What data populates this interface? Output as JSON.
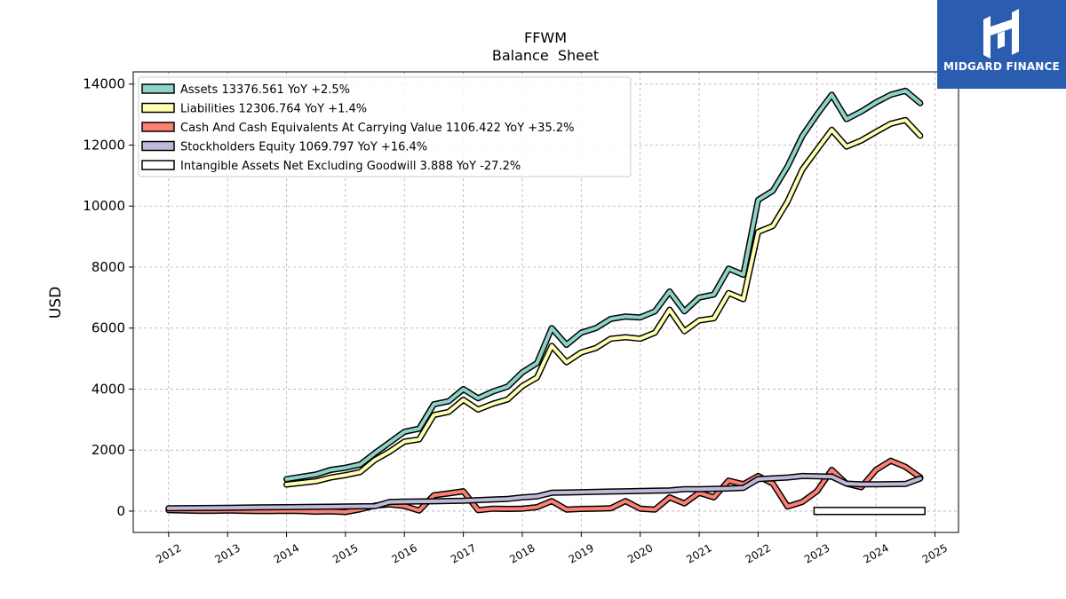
{
  "brand": {
    "name": "MIDGARD FINANCE",
    "color": "#2a5db0"
  },
  "chart_data": {
    "type": "line",
    "title": "FFWM",
    "subtitle": "Balance  Sheet",
    "ylabel": "USD",
    "xlabel": "",
    "xlim": [
      2011.4,
      2025.4
    ],
    "ylim": [
      -700,
      14400
    ],
    "yticks": [
      0,
      2000,
      4000,
      6000,
      8000,
      10000,
      12000,
      14000
    ],
    "xticks": [
      2012,
      2013,
      2014,
      2015,
      2016,
      2017,
      2018,
      2019,
      2020,
      2021,
      2022,
      2023,
      2024,
      2025
    ],
    "grid": true,
    "legend_position": "top-left",
    "series": [
      {
        "name": "Assets  13376.561 YoY +2.5%",
        "color": "#8dd3c7",
        "x": [
          2014.0,
          2014.5,
          2014.75,
          2015.0,
          2015.25,
          2015.5,
          2015.75,
          2016.0,
          2016.25,
          2016.5,
          2016.75,
          2017.0,
          2017.25,
          2017.5,
          2017.75,
          2018.0,
          2018.25,
          2018.5,
          2018.75,
          2019.0,
          2019.25,
          2019.5,
          2019.75,
          2020.0,
          2020.25,
          2020.5,
          2020.75,
          2021.0,
          2021.25,
          2021.5,
          2021.75,
          2022.0,
          2022.25,
          2022.5,
          2022.75,
          2023.0,
          2023.25,
          2023.5,
          2023.75,
          2024.0,
          2024.25,
          2024.5,
          2024.75
        ],
        "values": [
          1050,
          1200,
          1350,
          1420,
          1530,
          1900,
          2250,
          2600,
          2700,
          3500,
          3600,
          4000,
          3700,
          3920,
          4080,
          4550,
          4850,
          6000,
          5450,
          5850,
          6000,
          6300,
          6380,
          6350,
          6550,
          7200,
          6550,
          7000,
          7100,
          7950,
          7750,
          10200,
          10500,
          11300,
          12300,
          13000,
          13650,
          12850,
          13100,
          13400,
          13650,
          13780,
          13376
        ]
      },
      {
        "name": "Liabilities  12306.764 YoY +1.4%",
        "color": "#ffffb3",
        "x": [
          2014.0,
          2014.5,
          2014.75,
          2015.0,
          2015.25,
          2015.5,
          2015.75,
          2016.0,
          2016.25,
          2016.5,
          2016.75,
          2017.0,
          2017.25,
          2017.5,
          2017.75,
          2018.0,
          2018.25,
          2018.5,
          2018.75,
          2019.0,
          2019.25,
          2019.5,
          2019.75,
          2020.0,
          2020.25,
          2020.5,
          2020.75,
          2021.0,
          2021.25,
          2021.5,
          2021.75,
          2022.0,
          2022.25,
          2022.5,
          2022.75,
          2023.0,
          2023.25,
          2023.5,
          2023.75,
          2024.0,
          2024.25,
          2024.5,
          2024.75
        ],
        "values": [
          870,
          980,
          1100,
          1180,
          1280,
          1680,
          1950,
          2280,
          2350,
          3150,
          3250,
          3650,
          3330,
          3520,
          3660,
          4100,
          4380,
          5420,
          4880,
          5200,
          5350,
          5650,
          5700,
          5650,
          5850,
          6600,
          5900,
          6250,
          6320,
          7150,
          6950,
          9150,
          9350,
          10150,
          11200,
          11850,
          12500,
          11950,
          12150,
          12430,
          12700,
          12820,
          12306
        ]
      },
      {
        "name": "Cash And Cash Equivalents At Carrying Value  1106.422 YoY +35.2%",
        "color": "#fb8072",
        "x": [
          2012.0,
          2012.25,
          2012.5,
          2012.75,
          2013.0,
          2013.25,
          2013.5,
          2013.75,
          2014.0,
          2014.25,
          2014.5,
          2014.75,
          2015.0,
          2015.25,
          2015.5,
          2015.75,
          2016.0,
          2016.25,
          2016.5,
          2016.75,
          2017.0,
          2017.25,
          2017.5,
          2017.75,
          2018.0,
          2018.25,
          2018.5,
          2018.75,
          2019.0,
          2019.25,
          2019.5,
          2019.75,
          2020.0,
          2020.25,
          2020.5,
          2020.75,
          2021.0,
          2021.25,
          2021.5,
          2021.75,
          2022.0,
          2022.25,
          2022.5,
          2022.75,
          2023.0,
          2023.25,
          2023.5,
          2023.75,
          2024.0,
          2024.25,
          2024.5,
          2024.75
        ],
        "values": [
          30,
          20,
          10,
          10,
          20,
          10,
          0,
          0,
          10,
          0,
          -20,
          -10,
          -30,
          60,
          180,
          220,
          170,
          20,
          520,
          580,
          650,
          30,
          80,
          70,
          80,
          130,
          330,
          50,
          70,
          80,
          90,
          330,
          80,
          50,
          450,
          250,
          600,
          450,
          1000,
          880,
          1150,
          900,
          150,
          300,
          650,
          1350,
          900,
          780,
          1350,
          1650,
          1450,
          1106
        ]
      },
      {
        "name": "Stockholders Equity  1069.797 YoY +16.4%",
        "color": "#bebada",
        "x": [
          2012.0,
          2012.5,
          2013.0,
          2013.5,
          2014.0,
          2014.5,
          2015.0,
          2015.5,
          2015.75,
          2016.0,
          2016.5,
          2017.0,
          2017.5,
          2017.75,
          2018.0,
          2018.25,
          2018.5,
          2018.75,
          2019.0,
          2019.5,
          2019.75,
          2020.0,
          2020.5,
          2020.75,
          2021.0,
          2021.5,
          2021.75,
          2022.0,
          2022.5,
          2022.75,
          2023.0,
          2023.25,
          2023.5,
          2023.75,
          2024.0,
          2024.5,
          2024.75
        ],
        "values": [
          90,
          100,
          110,
          120,
          130,
          140,
          150,
          160,
          300,
          310,
          320,
          340,
          380,
          400,
          450,
          480,
          600,
          610,
          620,
          640,
          650,
          660,
          680,
          720,
          720,
          740,
          760,
          1050,
          1100,
          1150,
          1140,
          1130,
          900,
          880,
          880,
          890,
          1070
        ]
      },
      {
        "name": "Intangible Assets Net Excluding Goodwill  3.888 YoY -27.2%",
        "color": "#ffffff",
        "bar": true,
        "x0": 2022.95,
        "x1": 2024.83,
        "bar_top": 120,
        "bar_bottom": -110,
        "values": [
          3.888
        ]
      }
    ]
  }
}
